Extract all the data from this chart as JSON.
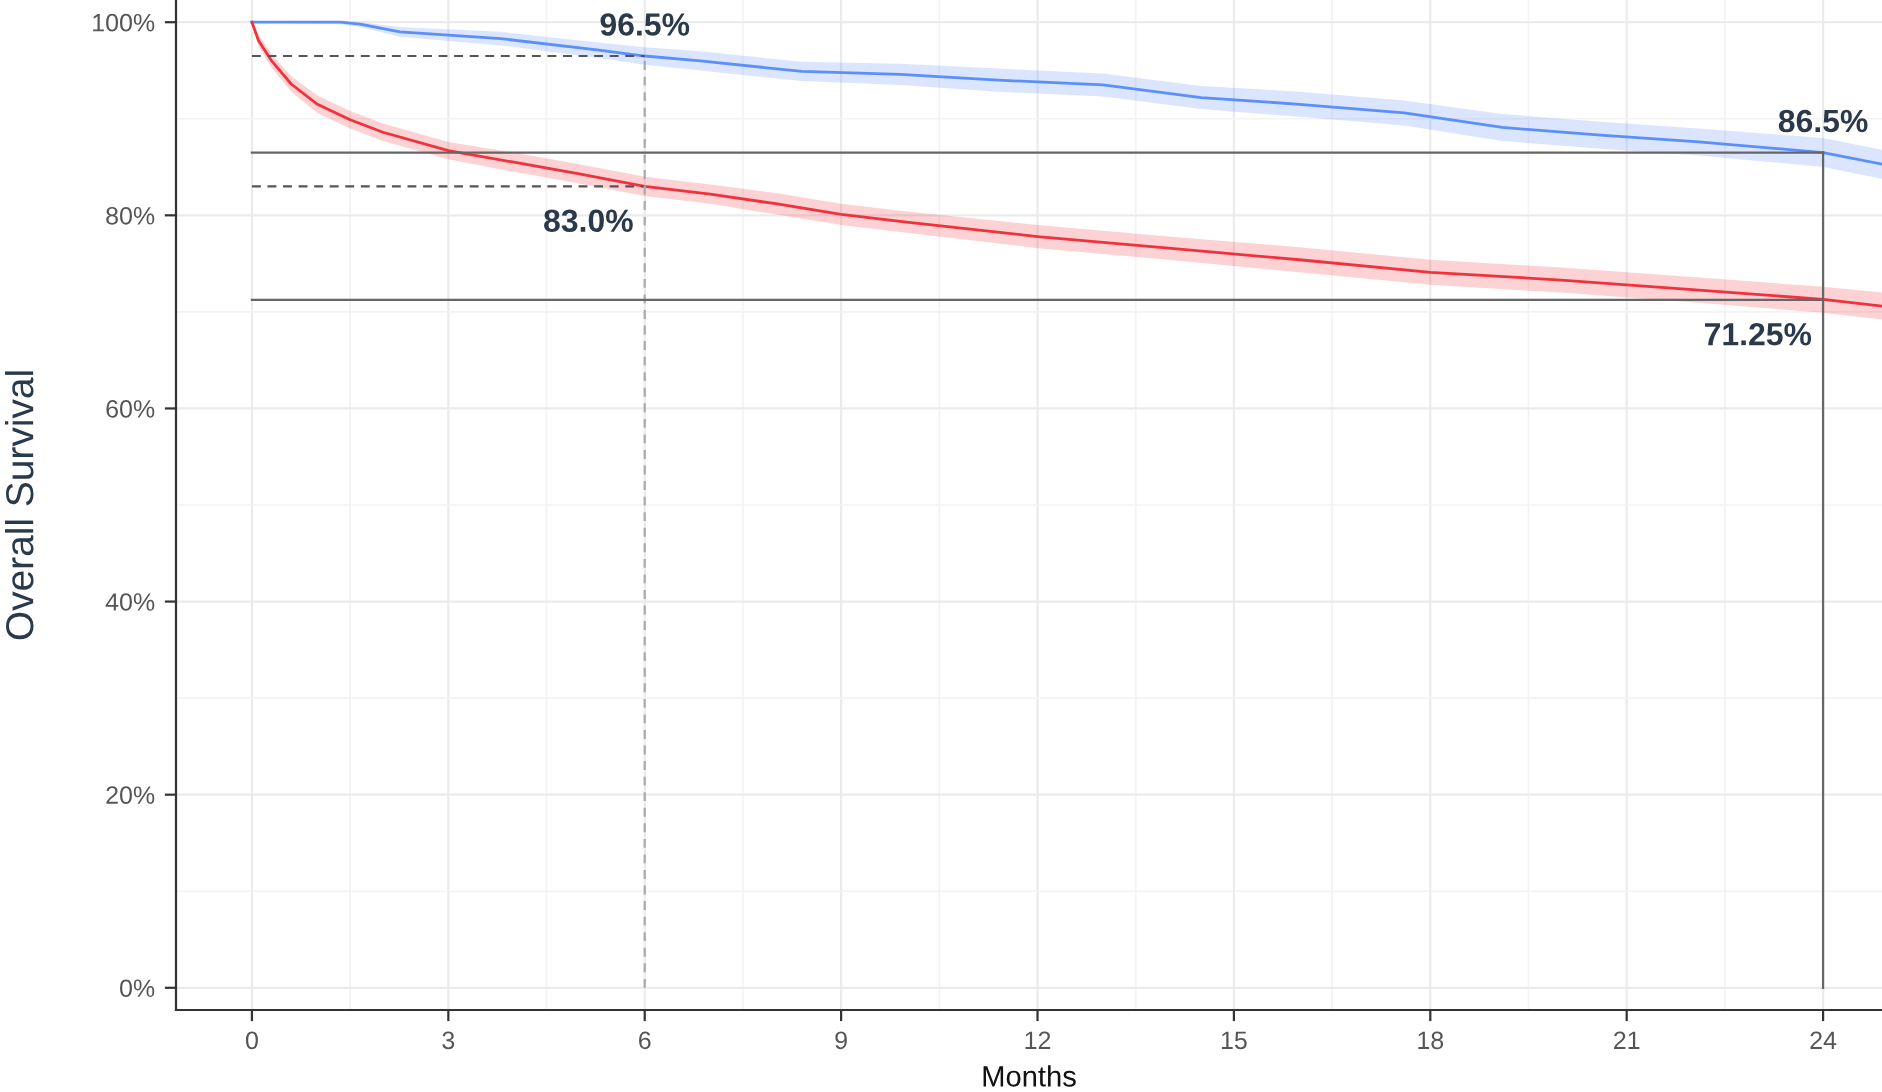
{
  "chart_data": {
    "type": "line",
    "xlabel": "Months",
    "ylabel": "Overall Survival",
    "xlim": [
      -1.16,
      24.9
    ],
    "ylim": [
      -2.3,
      102.3
    ],
    "xticks": [
      0,
      3,
      6,
      9,
      12,
      15,
      18,
      21,
      24
    ],
    "yticks": [
      {
        "value": 0,
        "label": "0%"
      },
      {
        "value": 20,
        "label": "20%"
      },
      {
        "value": 40,
        "label": "40%"
      },
      {
        "value": 60,
        "label": "60%"
      },
      {
        "value": 80,
        "label": "80%"
      },
      {
        "value": 100,
        "label": "100%"
      }
    ],
    "grid": true,
    "legend": false,
    "marker": "none",
    "line_style": "solid",
    "series": [
      {
        "color": "#5b8ff9",
        "x": [
          0,
          1.35,
          1.65,
          2.26,
          3.8,
          5.3,
          6,
          6.85,
          8.4,
          9.9,
          11.4,
          13,
          14.5,
          16,
          17.6,
          19.1,
          20.6,
          22.1,
          24,
          24.9
        ],
        "values": [
          100,
          100,
          99.8,
          99.0,
          98.3,
          97.1,
          96.5,
          96.0,
          94.9,
          94.6,
          94.0,
          93.5,
          92.2,
          91.5,
          90.6,
          89.1,
          88.3,
          87.6,
          86.5,
          85.3
        ],
        "lower": [
          100,
          99.8,
          99.5,
          98.5,
          97.6,
          96.3,
          95.6,
          95.0,
          93.9,
          93.5,
          92.8,
          92.3,
          91.0,
          90.2,
          89.3,
          87.7,
          86.9,
          86.2,
          85.0,
          83.8
        ],
        "upper": [
          100,
          100,
          100,
          99.5,
          99.0,
          97.9,
          97.4,
          97.0,
          95.9,
          95.7,
          95.2,
          94.7,
          93.4,
          92.8,
          91.9,
          90.5,
          89.7,
          89.0,
          88.0,
          86.8
        ]
      },
      {
        "color": "#f0323c",
        "x": [
          0,
          0.1,
          0.3,
          0.6,
          1,
          1.5,
          2,
          3,
          4,
          5,
          6,
          7,
          8,
          9,
          10,
          12,
          14,
          16,
          18,
          20,
          22,
          24,
          24.9
        ],
        "values": [
          100,
          98.1,
          96.0,
          93.6,
          91.5,
          89.9,
          88.6,
          86.7,
          85.5,
          84.3,
          83.0,
          82.2,
          81.2,
          80.1,
          79.3,
          77.8,
          76.6,
          75.4,
          74.1,
          73.3,
          72.3,
          71.3,
          70.6
        ],
        "lower": [
          100,
          97.5,
          95.3,
          92.8,
          90.6,
          89.0,
          87.7,
          85.8,
          84.5,
          83.3,
          82.0,
          81.2,
          80.1,
          79.0,
          78.2,
          76.6,
          75.4,
          74.1,
          72.8,
          72.0,
          71.0,
          69.9,
          69.2
        ],
        "upper": [
          100,
          98.7,
          96.7,
          94.4,
          92.4,
          90.8,
          89.5,
          87.6,
          86.5,
          85.3,
          84.0,
          83.2,
          82.3,
          81.2,
          80.4,
          79.0,
          77.8,
          76.7,
          75.4,
          74.6,
          73.6,
          72.6,
          72.0
        ]
      }
    ],
    "ref_lines": [
      {
        "axis": "y",
        "value": 96.5,
        "label": "96.5%",
        "color": "#555555",
        "line_style": "dashed"
      },
      {
        "axis": "y",
        "value": 83.0,
        "label": "83.0%",
        "color": "#555555",
        "line_style": "dashed"
      },
      {
        "axis": "x",
        "value": 6,
        "color": "#aaaaaa",
        "line_style": "dashed"
      },
      {
        "axis": "y",
        "value": 86.5,
        "label": "86.5%",
        "color": "#666666",
        "line_style": "solid"
      },
      {
        "axis": "y",
        "value": 71.25,
        "label": "71.25%",
        "color": "#666666",
        "line_style": "solid"
      },
      {
        "axis": "x",
        "value": 24,
        "color": "#666666",
        "line_style": "solid"
      }
    ]
  }
}
